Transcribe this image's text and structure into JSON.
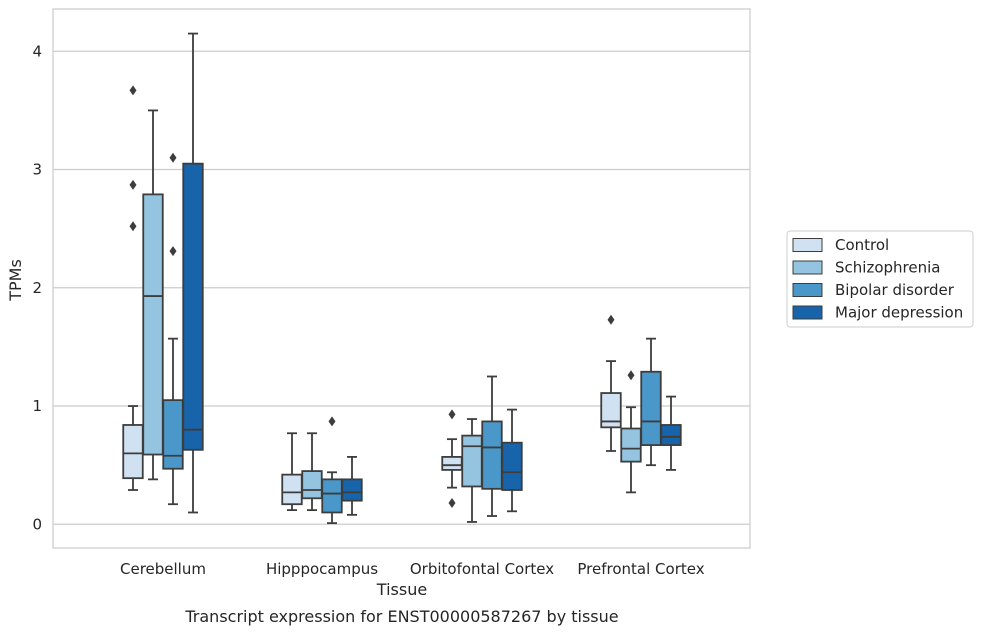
{
  "chart_data": {
    "type": "box",
    "title": "",
    "caption": "Transcript expression for ENST00000587267 by tissue",
    "xlabel": "Tissue",
    "ylabel": "TPMs",
    "ylim": [
      -0.2,
      4.35
    ],
    "yticks": [
      0,
      1,
      2,
      3,
      4
    ],
    "grid": "horizontal",
    "legend_position": "right",
    "categories": [
      "Cerebellum",
      "Hipppocampus",
      "Orbitofontal Cortex",
      "Prefrontal Cortex"
    ],
    "series": [
      {
        "name": "Control",
        "color": "#d0e1f2",
        "boxes": [
          {
            "whislo": 0.29,
            "q1": 0.39,
            "med": 0.6,
            "q3": 0.84,
            "whishi": 1.0,
            "fliers": [
              2.52,
              2.87,
              3.67
            ]
          },
          {
            "whislo": 0.12,
            "q1": 0.17,
            "med": 0.27,
            "q3": 0.42,
            "whishi": 0.77,
            "fliers": []
          },
          {
            "whislo": 0.31,
            "q1": 0.46,
            "med": 0.5,
            "q3": 0.57,
            "whishi": 0.72,
            "fliers": [
              0.18,
              0.93
            ]
          },
          {
            "whislo": 0.62,
            "q1": 0.82,
            "med": 0.87,
            "q3": 1.11,
            "whishi": 1.38,
            "fliers": [
              1.73
            ]
          }
        ]
      },
      {
        "name": "Schizophrenia",
        "color": "#94c4df",
        "boxes": [
          {
            "whislo": 0.38,
            "q1": 0.59,
            "med": 1.93,
            "q3": 2.79,
            "whishi": 3.5,
            "fliers": []
          },
          {
            "whislo": 0.12,
            "q1": 0.22,
            "med": 0.29,
            "q3": 0.45,
            "whishi": 0.77,
            "fliers": []
          },
          {
            "whislo": 0.02,
            "q1": 0.32,
            "med": 0.66,
            "q3": 0.75,
            "whishi": 0.89,
            "fliers": []
          },
          {
            "whislo": 0.27,
            "q1": 0.53,
            "med": 0.64,
            "q3": 0.81,
            "whishi": 0.99,
            "fliers": [
              1.26
            ]
          }
        ]
      },
      {
        "name": "Bipolar disorder",
        "color": "#4a98c9",
        "boxes": [
          {
            "whislo": 0.17,
            "q1": 0.47,
            "med": 0.58,
            "q3": 1.05,
            "whishi": 1.57,
            "fliers": [
              2.31,
              3.1
            ]
          },
          {
            "whislo": 0.01,
            "q1": 0.1,
            "med": 0.26,
            "q3": 0.38,
            "whishi": 0.44,
            "fliers": [
              0.87
            ]
          },
          {
            "whislo": 0.07,
            "q1": 0.3,
            "med": 0.65,
            "q3": 0.87,
            "whishi": 1.25,
            "fliers": []
          },
          {
            "whislo": 0.5,
            "q1": 0.67,
            "med": 0.87,
            "q3": 1.29,
            "whishi": 1.57,
            "fliers": []
          }
        ]
      },
      {
        "name": "Major depression",
        "color": "#1764ab",
        "boxes": [
          {
            "whislo": 0.1,
            "q1": 0.63,
            "med": 0.8,
            "q3": 3.05,
            "whishi": 4.15,
            "fliers": []
          },
          {
            "whislo": 0.08,
            "q1": 0.2,
            "med": 0.27,
            "q3": 0.38,
            "whishi": 0.57,
            "fliers": []
          },
          {
            "whislo": 0.11,
            "q1": 0.29,
            "med": 0.44,
            "q3": 0.69,
            "whishi": 0.97,
            "fliers": []
          },
          {
            "whislo": 0.46,
            "q1": 0.67,
            "med": 0.74,
            "q3": 0.84,
            "whishi": 1.08,
            "fliers": []
          }
        ]
      }
    ]
  }
}
